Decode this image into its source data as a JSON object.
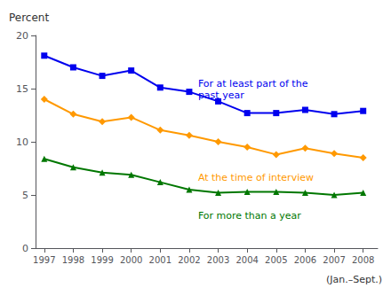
{
  "chart_data": {
    "type": "line",
    "y_label": "Percent",
    "note": "(Jan.–Sept.)",
    "x": [
      1997,
      1998,
      1999,
      2000,
      2001,
      2002,
      2003,
      2004,
      2005,
      2006,
      2007,
      2008
    ],
    "series": [
      {
        "name": "For at least part of the\npast year",
        "color": "#0000ee",
        "marker": "square",
        "values": [
          18.1,
          17.0,
          16.2,
          16.7,
          15.1,
          14.7,
          13.8,
          12.7,
          12.7,
          13.0,
          12.6,
          12.9
        ]
      },
      {
        "name": "At the time of interview",
        "color": "#ff9900",
        "marker": "diamond",
        "values": [
          14.0,
          12.6,
          11.9,
          12.3,
          11.1,
          10.6,
          10.0,
          9.5,
          8.8,
          9.4,
          8.9,
          8.5
        ]
      },
      {
        "name": "For more than a year",
        "color": "#007700",
        "marker": "triangle",
        "values": [
          8.4,
          7.6,
          7.1,
          6.9,
          6.2,
          5.5,
          5.2,
          5.3,
          5.3,
          5.2,
          5.0,
          5.2
        ]
      }
    ],
    "xlim": [
      1996.7,
      2008.5
    ],
    "xticks": [
      1997,
      1998,
      1999,
      2000,
      2001,
      2002,
      2003,
      2004,
      2005,
      2006,
      2007,
      2008
    ],
    "ylim": [
      0,
      20
    ],
    "yticks": [
      0,
      5,
      10,
      15,
      20
    ],
    "grid": false
  }
}
